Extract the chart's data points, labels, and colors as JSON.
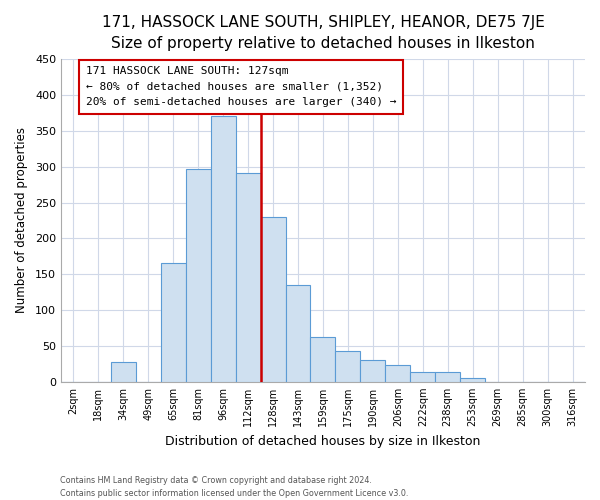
{
  "title": "171, HASSOCK LANE SOUTH, SHIPLEY, HEANOR, DE75 7JE",
  "subtitle": "Size of property relative to detached houses in Ilkeston",
  "xlabel": "Distribution of detached houses by size in Ilkeston",
  "ylabel": "Number of detached properties",
  "bar_labels": [
    "2sqm",
    "18sqm",
    "34sqm",
    "49sqm",
    "65sqm",
    "81sqm",
    "96sqm",
    "112sqm",
    "128sqm",
    "143sqm",
    "159sqm",
    "175sqm",
    "190sqm",
    "206sqm",
    "222sqm",
    "238sqm",
    "253sqm",
    "269sqm",
    "285sqm",
    "300sqm",
    "316sqm"
  ],
  "bar_heights": [
    0,
    0,
    27,
    0,
    165,
    297,
    370,
    291,
    230,
    135,
    62,
    43,
    30,
    23,
    14,
    14,
    5,
    0,
    0,
    0,
    0
  ],
  "bar_color": "#cfe0f0",
  "bar_edge_color": "#5b9bd5",
  "vline_x_index": 8,
  "vline_color": "#cc0000",
  "annotation_title": "171 HASSOCK LANE SOUTH: 127sqm",
  "annotation_line1": "← 80% of detached houses are smaller (1,352)",
  "annotation_line2": "20% of semi-detached houses are larger (340) →",
  "annotation_box_color": "#ffffff",
  "annotation_box_edge": "#cc0000",
  "footnote1": "Contains HM Land Registry data © Crown copyright and database right 2024.",
  "footnote2": "Contains public sector information licensed under the Open Government Licence v3.0.",
  "ylim": [
    0,
    450
  ],
  "yticks": [
    0,
    50,
    100,
    150,
    200,
    250,
    300,
    350,
    400,
    450
  ],
  "background_color": "#ffffff",
  "grid_color": "#d0d8e8",
  "title_fontsize": 11,
  "subtitle_fontsize": 9.5
}
